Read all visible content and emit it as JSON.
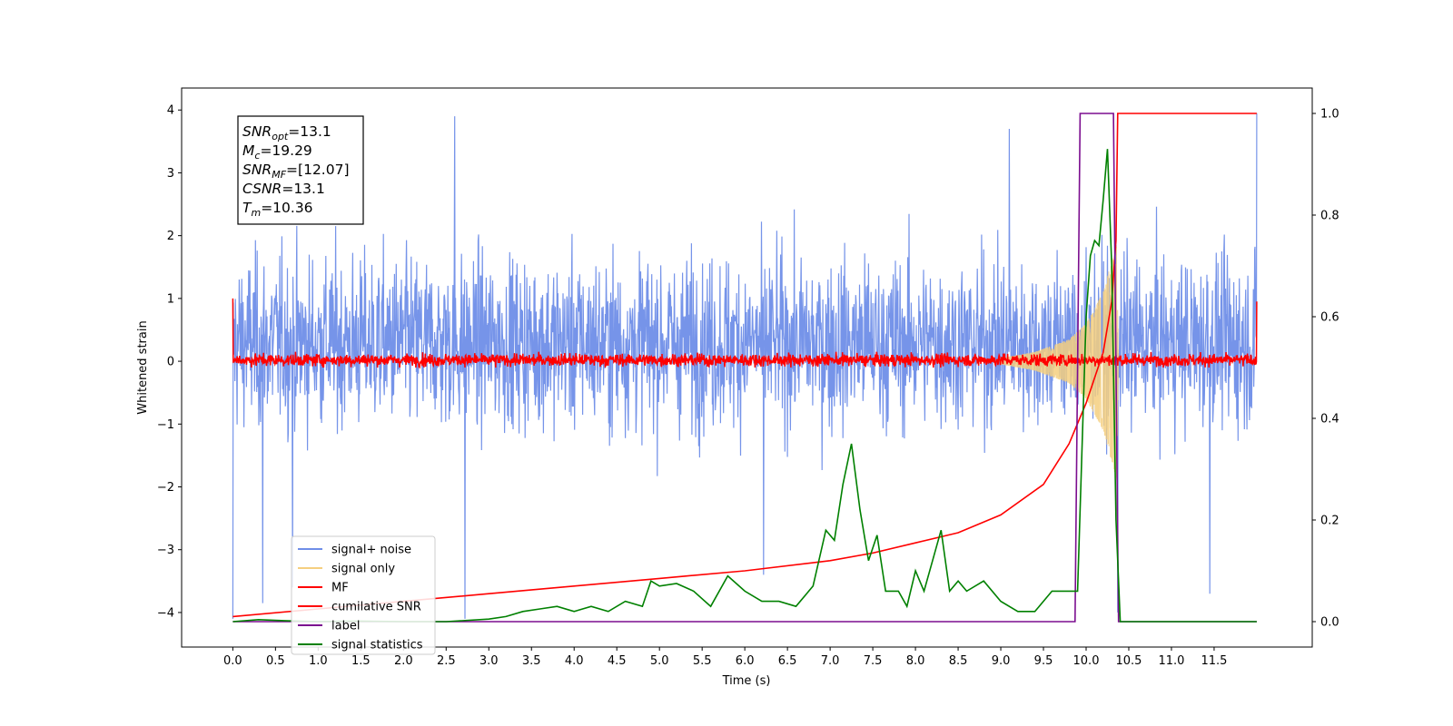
{
  "chart_data": {
    "type": "line",
    "xlabel": "Time (s)",
    "ylabel": "Whitened strain",
    "xlim": [
      -0.6,
      12.65
    ],
    "ylim": [
      -4.55,
      4.35
    ],
    "ylim_right": [
      -0.05,
      1.05
    ],
    "x_ticks": [
      "0.0",
      "0.5",
      "1.0",
      "1.5",
      "2.0",
      "2.5",
      "3.0",
      "3.5",
      "4.0",
      "4.5",
      "5.0",
      "5.5",
      "6.0",
      "6.5",
      "7.0",
      "7.5",
      "8.0",
      "8.5",
      "9.0",
      "9.5",
      "10.0",
      "10.5",
      "11.0",
      "11.5"
    ],
    "y_ticks": [
      "4",
      "3",
      "2",
      "1",
      "0",
      "−1",
      "−2",
      "−3",
      "−4"
    ],
    "y_ticks_right": [
      "1.0",
      "0.8",
      "0.6",
      "0.4",
      "0.2",
      "0.0"
    ],
    "annotation": {
      "lines": [
        {
          "main": "SNR",
          "sub": "opt",
          "value": "=13.1"
        },
        {
          "main": "M",
          "sub": "c",
          "value": "=19.29"
        },
        {
          "main": "SNR",
          "sub": "MF",
          "value": "=[12.07]"
        },
        {
          "main": "CSNR",
          "sub": "",
          "value": "=13.1"
        },
        {
          "main": "T",
          "sub": "m",
          "value": "=10.36"
        }
      ]
    },
    "legend": {
      "placement": "lower-left",
      "entries": [
        {
          "label": "signal+ noise",
          "color": "#6f8ee8"
        },
        {
          "label": "signal only",
          "color": "#f5cf7f"
        },
        {
          "label": "MF",
          "color": "#ff0000"
        },
        {
          "label": "cumilative SNR",
          "color": "#ff0000"
        },
        {
          "label": "label",
          "color": "#7b0d8f"
        },
        {
          "label": "signal statistics",
          "color": "#008000"
        }
      ]
    },
    "series": [
      {
        "name": "signal+ noise",
        "axis": "left",
        "color": "#6f8ee8",
        "x_range": [
          0.0,
          12.0
        ],
        "noise_band": [
          -2.4,
          3.2
        ],
        "x": [
          0.0,
          0.35,
          0.7,
          2.6,
          2.72,
          6.22,
          9.1,
          10.37,
          11.45,
          12.0
        ],
        "y": [
          -4.1,
          -3.85,
          -3.6,
          3.9,
          -4.1,
          -3.4,
          3.7,
          -4.0,
          -3.7,
          3.95
        ]
      },
      {
        "name": "signal only",
        "axis": "left",
        "color": "#f5cf7f",
        "x": [
          9.0,
          9.4,
          9.8,
          10.0,
          10.2,
          10.36,
          10.38
        ],
        "amplitude": [
          0.05,
          0.15,
          0.35,
          0.6,
          1.1,
          1.9,
          0.0
        ]
      },
      {
        "name": "MF",
        "axis": "left",
        "color": "#ff0000",
        "x_range": [
          0.0,
          12.0
        ],
        "noise_band": [
          -0.1,
          0.15
        ],
        "x": [
          0.0,
          0.02,
          12.0
        ],
        "y": [
          1.0,
          0.0,
          0.95
        ]
      },
      {
        "name": "cumilative SNR",
        "axis": "right",
        "color": "#ff0000",
        "x": [
          0.0,
          1.0,
          2.0,
          3.0,
          4.0,
          5.0,
          6.0,
          7.0,
          7.5,
          8.0,
          8.5,
          9.0,
          9.5,
          9.8,
          10.0,
          10.1,
          10.2,
          10.3,
          10.35,
          10.37,
          12.0
        ],
        "y": [
          0.01,
          0.025,
          0.04,
          0.055,
          0.07,
          0.085,
          0.1,
          0.12,
          0.135,
          0.155,
          0.175,
          0.21,
          0.27,
          0.35,
          0.43,
          0.48,
          0.53,
          0.63,
          0.75,
          1.0,
          1.0
        ]
      },
      {
        "name": "label",
        "axis": "right",
        "color": "#7b0d8f",
        "x": [
          0.0,
          9.87,
          9.93,
          10.32,
          10.38,
          12.0
        ],
        "y": [
          0.0,
          0.0,
          1.0,
          1.0,
          0.0,
          0.0
        ]
      },
      {
        "name": "signal statistics",
        "axis": "right",
        "color": "#008000",
        "x": [
          0.0,
          0.3,
          0.6,
          1.0,
          1.5,
          2.0,
          2.5,
          3.0,
          3.2,
          3.4,
          3.6,
          3.8,
          4.0,
          4.2,
          4.4,
          4.6,
          4.8,
          4.9,
          5.0,
          5.2,
          5.4,
          5.6,
          5.8,
          6.0,
          6.2,
          6.4,
          6.6,
          6.8,
          6.95,
          7.05,
          7.15,
          7.25,
          7.35,
          7.45,
          7.55,
          7.65,
          7.8,
          7.9,
          8.0,
          8.1,
          8.2,
          8.3,
          8.4,
          8.5,
          8.6,
          8.8,
          9.0,
          9.2,
          9.4,
          9.6,
          9.8,
          9.9,
          10.0,
          10.05,
          10.1,
          10.15,
          10.2,
          10.25,
          10.3,
          10.35,
          10.4,
          10.7,
          11.0,
          11.5,
          12.0
        ],
        "y": [
          0.0,
          0.004,
          0.002,
          0.0,
          0.001,
          0.0,
          0.0,
          0.005,
          0.01,
          0.02,
          0.025,
          0.03,
          0.02,
          0.03,
          0.02,
          0.04,
          0.03,
          0.08,
          0.07,
          0.075,
          0.06,
          0.03,
          0.09,
          0.06,
          0.04,
          0.04,
          0.03,
          0.07,
          0.18,
          0.16,
          0.27,
          0.35,
          0.22,
          0.12,
          0.17,
          0.06,
          0.06,
          0.03,
          0.1,
          0.06,
          0.12,
          0.18,
          0.06,
          0.08,
          0.06,
          0.08,
          0.04,
          0.02,
          0.02,
          0.06,
          0.06,
          0.06,
          0.6,
          0.72,
          0.75,
          0.74,
          0.83,
          0.93,
          0.7,
          0.2,
          0.0,
          0.0,
          0.0,
          0.0,
          0.0
        ]
      }
    ]
  }
}
